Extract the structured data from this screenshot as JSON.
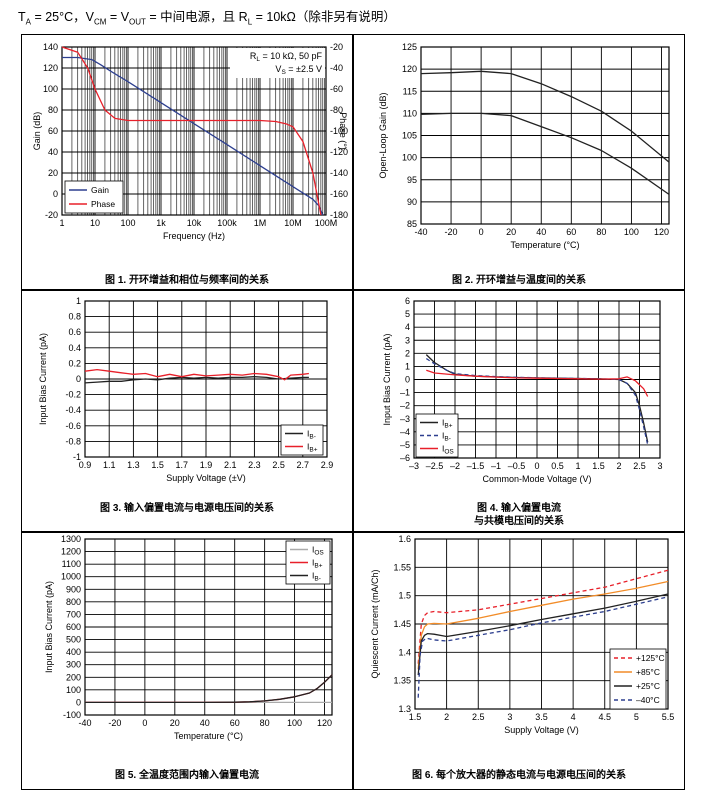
{
  "header": {
    "ta": "T",
    "ta_sub": "A",
    "ta_rest": " = 25°C，V",
    "vcm_sub": "CM",
    "eq1": " = V",
    "vout_sub": "OUT",
    "eq2": " = 中间电源，且 R",
    "rl_sub": "L",
    "rest": " = 10kΩ（除非另有说明）"
  },
  "chart_data": [
    {
      "id": "fig1",
      "type": "line",
      "caption": "图 1. 开环增益和相位与频率间的关系",
      "xlabel": "Frequency (Hz)",
      "ylabel": "Gain (dB)",
      "y2label": "Phase (°)",
      "xscale": "log",
      "xlim": [
        1,
        100000000
      ],
      "ylim": [
        -20,
        140
      ],
      "y2lim": [
        -180,
        -20
      ],
      "xticks": [
        1,
        10,
        100,
        1000,
        10000,
        100000,
        1000000,
        10000000,
        100000000
      ],
      "xticklabels": [
        "1",
        "10",
        "100",
        "1k",
        "10k",
        "100k",
        "1M",
        "10M",
        "100M"
      ],
      "yticks": [
        -20,
        0,
        20,
        40,
        60,
        80,
        100,
        120,
        140
      ],
      "y2ticks": [
        -180,
        -160,
        -140,
        -120,
        -100,
        -80,
        -60,
        -40,
        -20
      ],
      "annotation": [
        "R",
        "L",
        " = 10 kΩ, 50 pF",
        "V",
        "S",
        " = ±2.5 V"
      ],
      "legend": [
        "Gain",
        "Phase"
      ],
      "series": [
        {
          "name": "Gain",
          "color": "#2d3f8f",
          "axis": "y",
          "x": [
            1,
            3,
            8,
            15,
            30,
            100,
            1000,
            10000,
            100000,
            1000000,
            10000000,
            40000000,
            60000000,
            80000000
          ],
          "y": [
            130,
            130,
            128,
            123,
            117,
            107,
            87,
            67,
            47,
            27,
            7,
            -5,
            -11,
            -20
          ]
        },
        {
          "name": "Phase",
          "color": "#e8202a",
          "axis": "y2",
          "x": [
            1,
            3,
            6,
            10,
            20,
            40,
            100,
            1000,
            100000,
            1000000,
            3000000,
            6000000,
            10000000,
            20000000,
            40000000,
            70000000
          ],
          "y": [
            -20,
            -25,
            -40,
            -60,
            -80,
            -88,
            -90,
            -90,
            -90,
            -90,
            -91,
            -93,
            -96,
            -110,
            -140,
            -180
          ]
        }
      ]
    },
    {
      "id": "fig2",
      "type": "line",
      "caption": "图 2. 开环增益与温度间的关系",
      "xlabel": "Temperature (°C)",
      "ylabel": "Open-Loop Gain (dB)",
      "xlim": [
        -40,
        125
      ],
      "ylim": [
        85,
        125
      ],
      "xticks": [
        -40,
        -20,
        0,
        20,
        40,
        60,
        80,
        100,
        120
      ],
      "yticks": [
        85,
        90,
        95,
        100,
        105,
        110,
        115,
        120,
        125
      ],
      "series": [
        {
          "name": "upper",
          "color": "#222",
          "x": [
            -40,
            -20,
            0,
            20,
            40,
            60,
            80,
            100,
            125
          ],
          "y": [
            119,
            119.2,
            119.5,
            119,
            116.7,
            113.8,
            110.5,
            106,
            99
          ]
        },
        {
          "name": "lower",
          "color": "#222",
          "x": [
            -40,
            -20,
            0,
            20,
            40,
            60,
            80,
            100,
            125
          ],
          "y": [
            109.8,
            110,
            110,
            109.5,
            107,
            104.5,
            101.6,
            97.6,
            91.7
          ]
        }
      ]
    },
    {
      "id": "fig3",
      "type": "line",
      "caption": "图 3. 输入偏置电流与电源电压间的关系",
      "xlabel": "Supply Voltage (±V)",
      "ylabel": "Input Bias Current (pA)",
      "xlim": [
        0.9,
        2.9
      ],
      "ylim": [
        -1,
        1
      ],
      "xticks": [
        0.9,
        1.1,
        1.3,
        1.5,
        1.7,
        1.9,
        2.1,
        2.3,
        2.5,
        2.7,
        2.9
      ],
      "yticks": [
        -1,
        -0.8,
        -0.6,
        -0.4,
        -0.2,
        0,
        0.2,
        0.4,
        0.6,
        0.8,
        1
      ],
      "legend": [
        "IB-",
        "IB+"
      ],
      "legend_main": [
        "I",
        "I"
      ],
      "legend_sub": [
        "B-",
        "B+"
      ],
      "series": [
        {
          "name": "IB-",
          "color": "#222",
          "x": [
            0.9,
            1.0,
            1.1,
            1.2,
            1.3,
            1.4,
            1.5,
            1.6,
            1.7,
            1.8,
            1.9,
            2.0,
            2.1,
            2.2,
            2.3,
            2.4,
            2.5,
            2.6,
            2.7,
            2.75
          ],
          "y": [
            -0.05,
            -0.04,
            -0.03,
            -0.03,
            -0.01,
            0.0,
            -0.01,
            0.01,
            0.02,
            0.01,
            0.02,
            0.01,
            0.02,
            0.02,
            0.03,
            0.02,
            0.0,
            0.01,
            0.02,
            0.02
          ]
        },
        {
          "name": "IB+",
          "color": "#e8202a",
          "x": [
            0.9,
            1.0,
            1.1,
            1.2,
            1.3,
            1.4,
            1.5,
            1.6,
            1.7,
            1.8,
            1.9,
            2.0,
            2.1,
            2.2,
            2.3,
            2.4,
            2.5,
            2.55,
            2.6,
            2.7,
            2.75
          ],
          "y": [
            0.1,
            0.12,
            0.1,
            0.08,
            0.06,
            0.07,
            0.03,
            0.06,
            0.03,
            0.06,
            0.04,
            0.05,
            0.06,
            0.05,
            0.07,
            0.06,
            0.03,
            -0.01,
            0.05,
            0.06,
            0.07
          ]
        }
      ]
    },
    {
      "id": "fig4",
      "type": "line",
      "caption": "图 4. 输入偏置电流\n与共模电压间的关系",
      "xlabel": "Common-Mode Voltage (V)",
      "ylabel": "Input Bias Current (pA)",
      "xlim": [
        -3,
        3
      ],
      "ylim": [
        -6,
        6
      ],
      "xticks": [
        -3,
        -2.5,
        -2,
        -1.5,
        -1,
        -0.5,
        0,
        0.5,
        1,
        1.5,
        2,
        2.5,
        3
      ],
      "xticklabels": [
        "–3",
        "–2.5",
        "–2",
        "–1.5",
        "–1",
        "–0.5",
        "0",
        "0.5",
        "1",
        "1.5",
        "2",
        "2.5",
        "3"
      ],
      "yticks": [
        -6,
        -5,
        -4,
        -3,
        -2,
        -1,
        0,
        1,
        2,
        3,
        4,
        5,
        6
      ],
      "yticklabels": [
        "–6",
        "–5",
        "–4",
        "–3",
        "–2",
        "–1",
        "0",
        "1",
        "2",
        "3",
        "4",
        "5",
        "6"
      ],
      "legend": [
        "IB+",
        "IB-",
        "IOS"
      ],
      "legend_main": [
        "I",
        "I",
        "I"
      ],
      "legend_sub": [
        "B+",
        "B-",
        "OS"
      ],
      "series": [
        {
          "name": "IB+",
          "color": "#222",
          "dash": "",
          "x": [
            -2.7,
            -2.5,
            -2.2,
            -2,
            -1.5,
            -1,
            -0.5,
            0,
            0.5,
            1,
            1.5,
            2,
            2.2,
            2.4,
            2.5,
            2.6,
            2.7
          ],
          "y": [
            1.9,
            1.3,
            0.7,
            0.4,
            0.25,
            0.2,
            0.15,
            0.12,
            0.1,
            0.08,
            0.05,
            0.0,
            -0.3,
            -1.0,
            -2.0,
            -3.3,
            -4.8
          ]
        },
        {
          "name": "IB-",
          "color": "#2d3f8f",
          "dash": "4,3",
          "x": [
            -2.7,
            -2.5,
            -2.2,
            -2,
            -1.5,
            -1,
            -0.5,
            0,
            0.5,
            1,
            1.5,
            2,
            2.2,
            2.4,
            2.5,
            2.6,
            2.7
          ],
          "y": [
            1.6,
            1.2,
            0.7,
            0.45,
            0.3,
            0.22,
            0.17,
            0.13,
            0.1,
            0.08,
            0.05,
            0.0,
            -0.3,
            -1.2,
            -2.3,
            -3.6,
            -5.0
          ]
        },
        {
          "name": "IOS",
          "color": "#e8202a",
          "dash": "",
          "x": [
            -2.7,
            -2.5,
            -2,
            -1.5,
            -1,
            -0.5,
            0,
            0.5,
            1,
            1.5,
            2,
            2.2,
            2.4,
            2.6,
            2.7
          ],
          "y": [
            0.7,
            0.5,
            0.35,
            0.25,
            0.18,
            0.12,
            0.1,
            0.08,
            0.05,
            0.03,
            0.05,
            0.2,
            -0.1,
            -0.7,
            -1.3
          ]
        }
      ]
    },
    {
      "id": "fig5",
      "type": "line",
      "caption": "图 5. 全温度范围内输入偏置电流",
      "xlabel": "Temperature (°C)",
      "ylabel": "Input Bias Current (pA)",
      "xlim": [
        -40,
        125
      ],
      "ylim": [
        -100,
        1300
      ],
      "xticks": [
        -40,
        -20,
        0,
        20,
        40,
        60,
        80,
        100,
        120
      ],
      "yticks": [
        -100,
        0,
        100,
        200,
        300,
        400,
        500,
        600,
        700,
        800,
        900,
        1000,
        1100,
        1200,
        1300
      ],
      "legend": [
        "IOS",
        "IB+",
        "IB-"
      ],
      "legend_main": [
        "I",
        "I",
        "I"
      ],
      "legend_sub": [
        "OS",
        "B+",
        "B-"
      ],
      "series": [
        {
          "name": "IOS",
          "color": "#aaaaaa",
          "x": [
            -40,
            0,
            60,
            80,
            100,
            110,
            120,
            125
          ],
          "y": [
            0,
            0,
            0,
            0,
            0,
            0,
            0,
            0
          ]
        },
        {
          "name": "IB+",
          "color": "#e8202a",
          "x": [
            -40,
            0,
            40,
            60,
            70,
            80,
            90,
            100,
            110,
            115,
            120,
            125
          ],
          "y": [
            0,
            0,
            0,
            2,
            5,
            12,
            25,
            45,
            75,
            110,
            160,
            220
          ]
        },
        {
          "name": "IB-",
          "color": "#222",
          "x": [
            -40,
            0,
            40,
            60,
            70,
            80,
            90,
            100,
            110,
            115,
            120,
            125
          ],
          "y": [
            0,
            0,
            0,
            2,
            5,
            12,
            25,
            45,
            75,
            110,
            160,
            220
          ]
        }
      ]
    },
    {
      "id": "fig6",
      "type": "line",
      "caption": "图 6. 每个放大器的静态电流与电源电压间的关系",
      "xlabel": "Supply Voltage (V)",
      "ylabel": "Quiescent Current (mA/Ch)",
      "xlim": [
        1.5,
        5.5
      ],
      "ylim": [
        1.3,
        1.6
      ],
      "xticks": [
        1.5,
        2,
        2.5,
        3,
        3.5,
        4,
        4.5,
        5,
        5.5
      ],
      "yticks": [
        1.3,
        1.35,
        1.4,
        1.45,
        1.5,
        1.55,
        1.6
      ],
      "legend": [
        "+125°C",
        "+85°C",
        "+25°C",
        "–40°C"
      ],
      "series": [
        {
          "name": "+125°C",
          "color": "#e8202a",
          "dash": "4,3",
          "x": [
            1.55,
            1.6,
            1.65,
            1.7,
            1.8,
            2,
            2.5,
            3,
            3.5,
            4,
            4.5,
            5,
            5.5
          ],
          "y": [
            1.38,
            1.45,
            1.465,
            1.47,
            1.472,
            1.47,
            1.475,
            1.485,
            1.495,
            1.505,
            1.515,
            1.53,
            1.545
          ]
        },
        {
          "name": "+85°C",
          "color": "#f28c28",
          "dash": "",
          "x": [
            1.55,
            1.6,
            1.65,
            1.7,
            1.8,
            2,
            2.5,
            3,
            3.5,
            4,
            4.5,
            5,
            5.5
          ],
          "y": [
            1.37,
            1.43,
            1.445,
            1.45,
            1.451,
            1.45,
            1.46,
            1.472,
            1.483,
            1.494,
            1.503,
            1.513,
            1.525
          ]
        },
        {
          "name": "+25°C",
          "color": "#222",
          "dash": "",
          "x": [
            1.55,
            1.6,
            1.65,
            1.7,
            1.8,
            2,
            2.5,
            3,
            3.5,
            4,
            4.5,
            5,
            5.5
          ],
          "y": [
            1.36,
            1.42,
            1.43,
            1.433,
            1.432,
            1.428,
            1.437,
            1.447,
            1.458,
            1.468,
            1.478,
            1.49,
            1.503
          ]
        },
        {
          "name": "–40°C",
          "color": "#2d3f8f",
          "dash": "4,3",
          "x": [
            1.55,
            1.58,
            1.62,
            1.68,
            1.8,
            2,
            2.5,
            3,
            3.5,
            4,
            4.5,
            5,
            5.5
          ],
          "y": [
            1.32,
            1.395,
            1.42,
            1.425,
            1.422,
            1.42,
            1.43,
            1.44,
            1.452,
            1.462,
            1.472,
            1.485,
            1.498
          ]
        }
      ]
    }
  ]
}
